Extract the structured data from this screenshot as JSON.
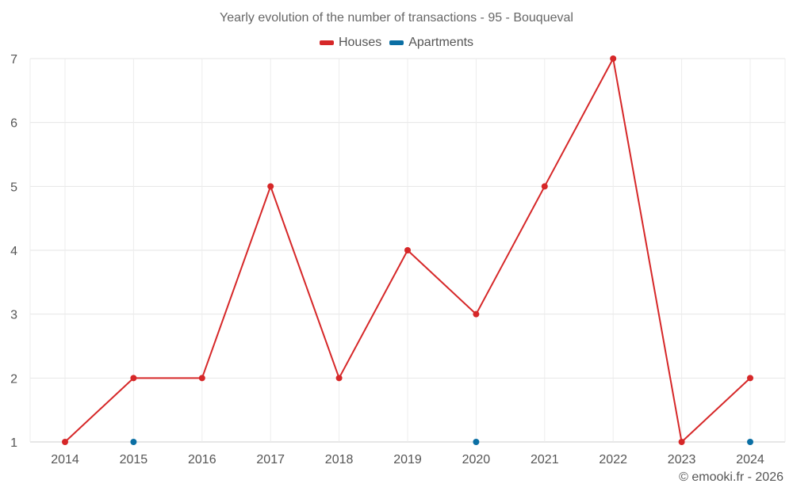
{
  "chart_data": {
    "type": "line",
    "title": "Yearly evolution of the number of transactions - 95 - Bouqueval",
    "categories": [
      "2014",
      "2015",
      "2016",
      "2017",
      "2018",
      "2019",
      "2020",
      "2021",
      "2022",
      "2023",
      "2024"
    ],
    "series": [
      {
        "name": "Houses",
        "color": "#d62728",
        "values": [
          1,
          2,
          2,
          5,
          2,
          4,
          3,
          5,
          7,
          1,
          2
        ]
      },
      {
        "name": "Apartments",
        "color": "#0b6fa4",
        "values": [
          null,
          1,
          null,
          null,
          null,
          null,
          1,
          null,
          null,
          null,
          1
        ]
      }
    ],
    "ylim": [
      1,
      7
    ],
    "yticks": [
      1,
      2,
      3,
      4,
      5,
      6,
      7
    ],
    "grid": true,
    "legend_position": "top-center",
    "xlabel": "",
    "ylabel": ""
  },
  "credit": "© emooki.fr - 2026"
}
